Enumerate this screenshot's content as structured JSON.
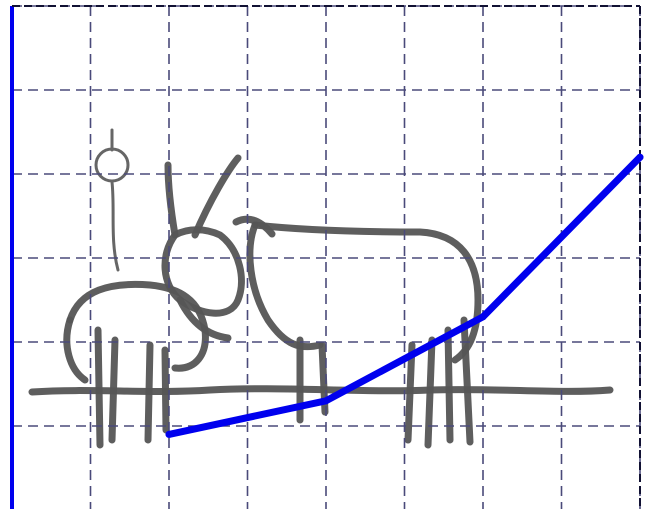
{
  "chart_data": {
    "type": "line",
    "x": [
      1,
      2,
      3,
      4
    ],
    "series": [
      {
        "values": [
          0.9,
          1.3,
          2.3,
          4.2
        ]
      }
    ],
    "xlim": [
      0,
      4
    ],
    "ylim": [
      0,
      6
    ],
    "grid": true,
    "x_grid_step": 0.5,
    "y_grid_step": 1,
    "line_color": "#0000ee",
    "axis_color": "#0000ee",
    "background_image": "hand-drawn-donkey-sketch"
  }
}
